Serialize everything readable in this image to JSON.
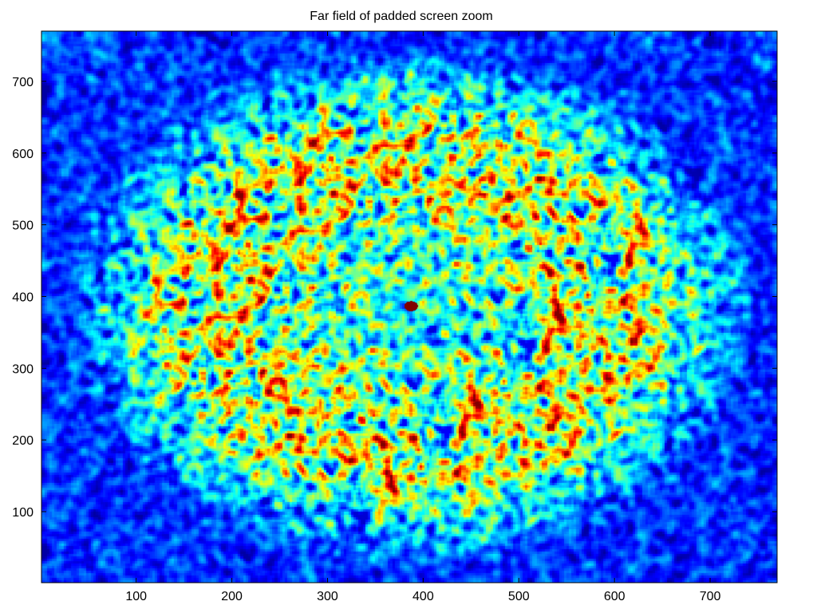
{
  "chart_data": {
    "type": "heatmap",
    "title": "Far field of padded screen zoom",
    "xlabel": "",
    "ylabel": "",
    "xlim": [
      1,
      770
    ],
    "ylim": [
      1,
      770
    ],
    "x_ticks": [
      100,
      200,
      300,
      400,
      500,
      600,
      700
    ],
    "y_ticks": [
      100,
      200,
      300,
      400,
      500,
      600,
      700
    ],
    "x_tick_labels": [
      "100",
      "200",
      "300",
      "400",
      "500",
      "600",
      "700"
    ],
    "y_tick_labels": [
      "100",
      "200",
      "300",
      "400",
      "500",
      "600",
      "700"
    ],
    "colormap": "jet",
    "grid": false,
    "pattern": {
      "center": [
        387,
        387
      ],
      "bright_annulus_inner_radius": 150,
      "bright_annulus_outer_radius": 240,
      "central_peak": [
        387,
        387
      ],
      "background_level": 0.18
    }
  }
}
